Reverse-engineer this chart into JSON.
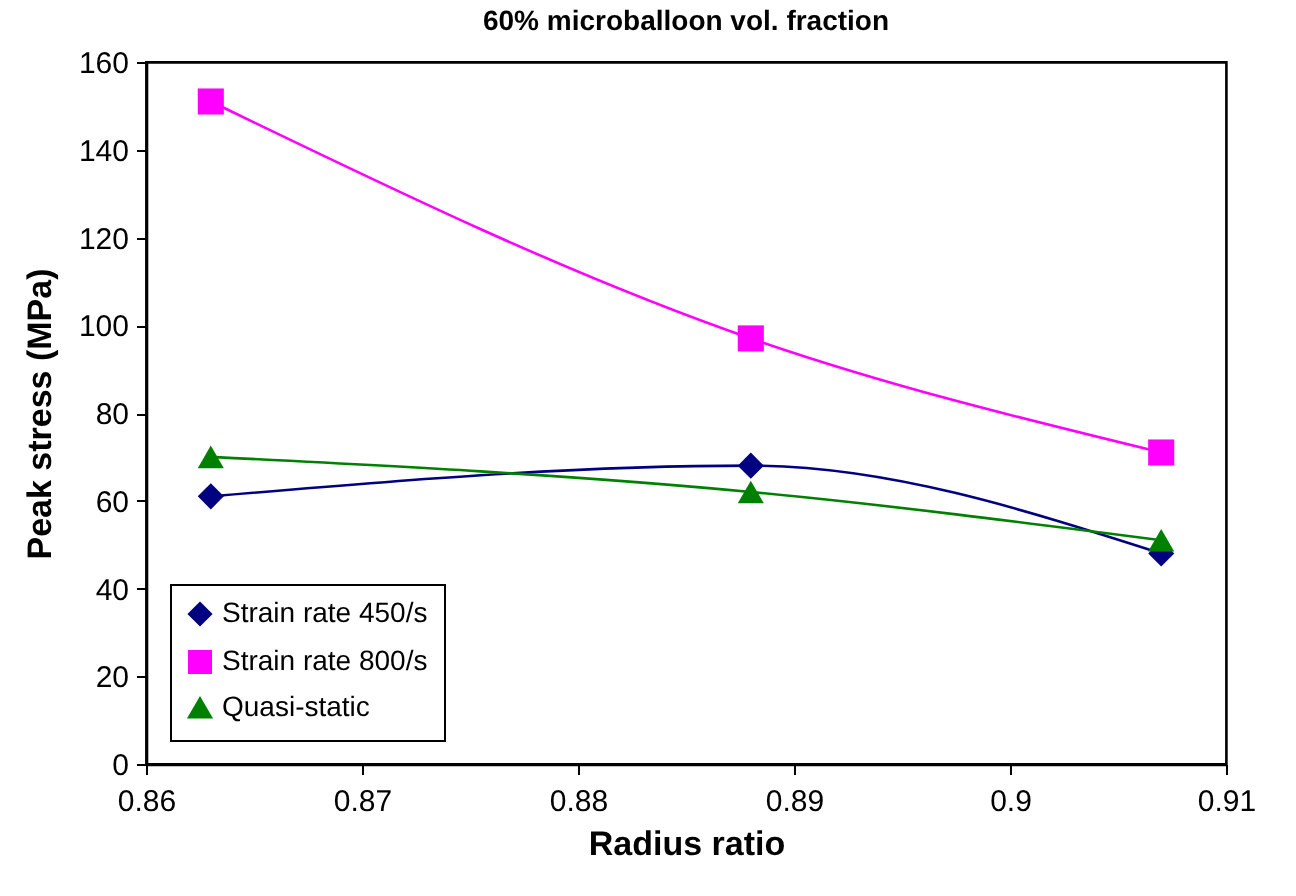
{
  "chart_data": {
    "type": "line",
    "title": "60% microballoon vol. fraction",
    "xlabel": "Radius ratio",
    "ylabel": "Peak stress (MPa)",
    "x": [
      0.863,
      0.888,
      0.907
    ],
    "series": [
      {
        "name": "Strain rate 450/s",
        "color": "#000080",
        "marker": "diamond",
        "values": [
          61,
          68,
          48
        ]
      },
      {
        "name": "Strain rate 800/s",
        "color": "#ff00ff",
        "marker": "square",
        "values": [
          151,
          97,
          71
        ]
      },
      {
        "name": "Quasi-static",
        "color": "#008000",
        "marker": "triangle",
        "values": [
          70,
          62,
          51
        ]
      }
    ],
    "xlim": [
      0.86,
      0.91
    ],
    "xticks": [
      0.86,
      0.87,
      0.88,
      0.89,
      0.9,
      0.91
    ],
    "ylim": [
      0,
      160
    ],
    "yticks": [
      0,
      20,
      40,
      60,
      80,
      100,
      120,
      140,
      160
    ],
    "grid": false,
    "legend": "bottom left",
    "line_style": "solid"
  }
}
